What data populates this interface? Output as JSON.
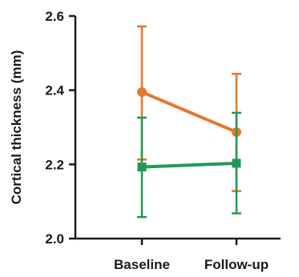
{
  "chart_data": {
    "type": "line",
    "title": "",
    "xlabel": "",
    "ylabel": "Cortical thickness (mm)",
    "categories": [
      "Baseline",
      "Follow-up"
    ],
    "ylim": [
      2.0,
      2.6
    ],
    "yticks": [
      "2.0",
      "2.2",
      "2.4",
      "2.6"
    ],
    "grid": false,
    "legend": "none",
    "series": [
      {
        "color": "#E8762D",
        "marker": "circle",
        "values": [
          2.395,
          2.287
        ],
        "error_low": [
          2.213,
          2.128
        ],
        "error_high": [
          2.572,
          2.444
        ]
      },
      {
        "color": "#1E9A55",
        "marker": "square",
        "values": [
          2.193,
          2.203
        ],
        "error_low": [
          2.058,
          2.068
        ],
        "error_high": [
          2.326,
          2.339
        ]
      }
    ]
  }
}
